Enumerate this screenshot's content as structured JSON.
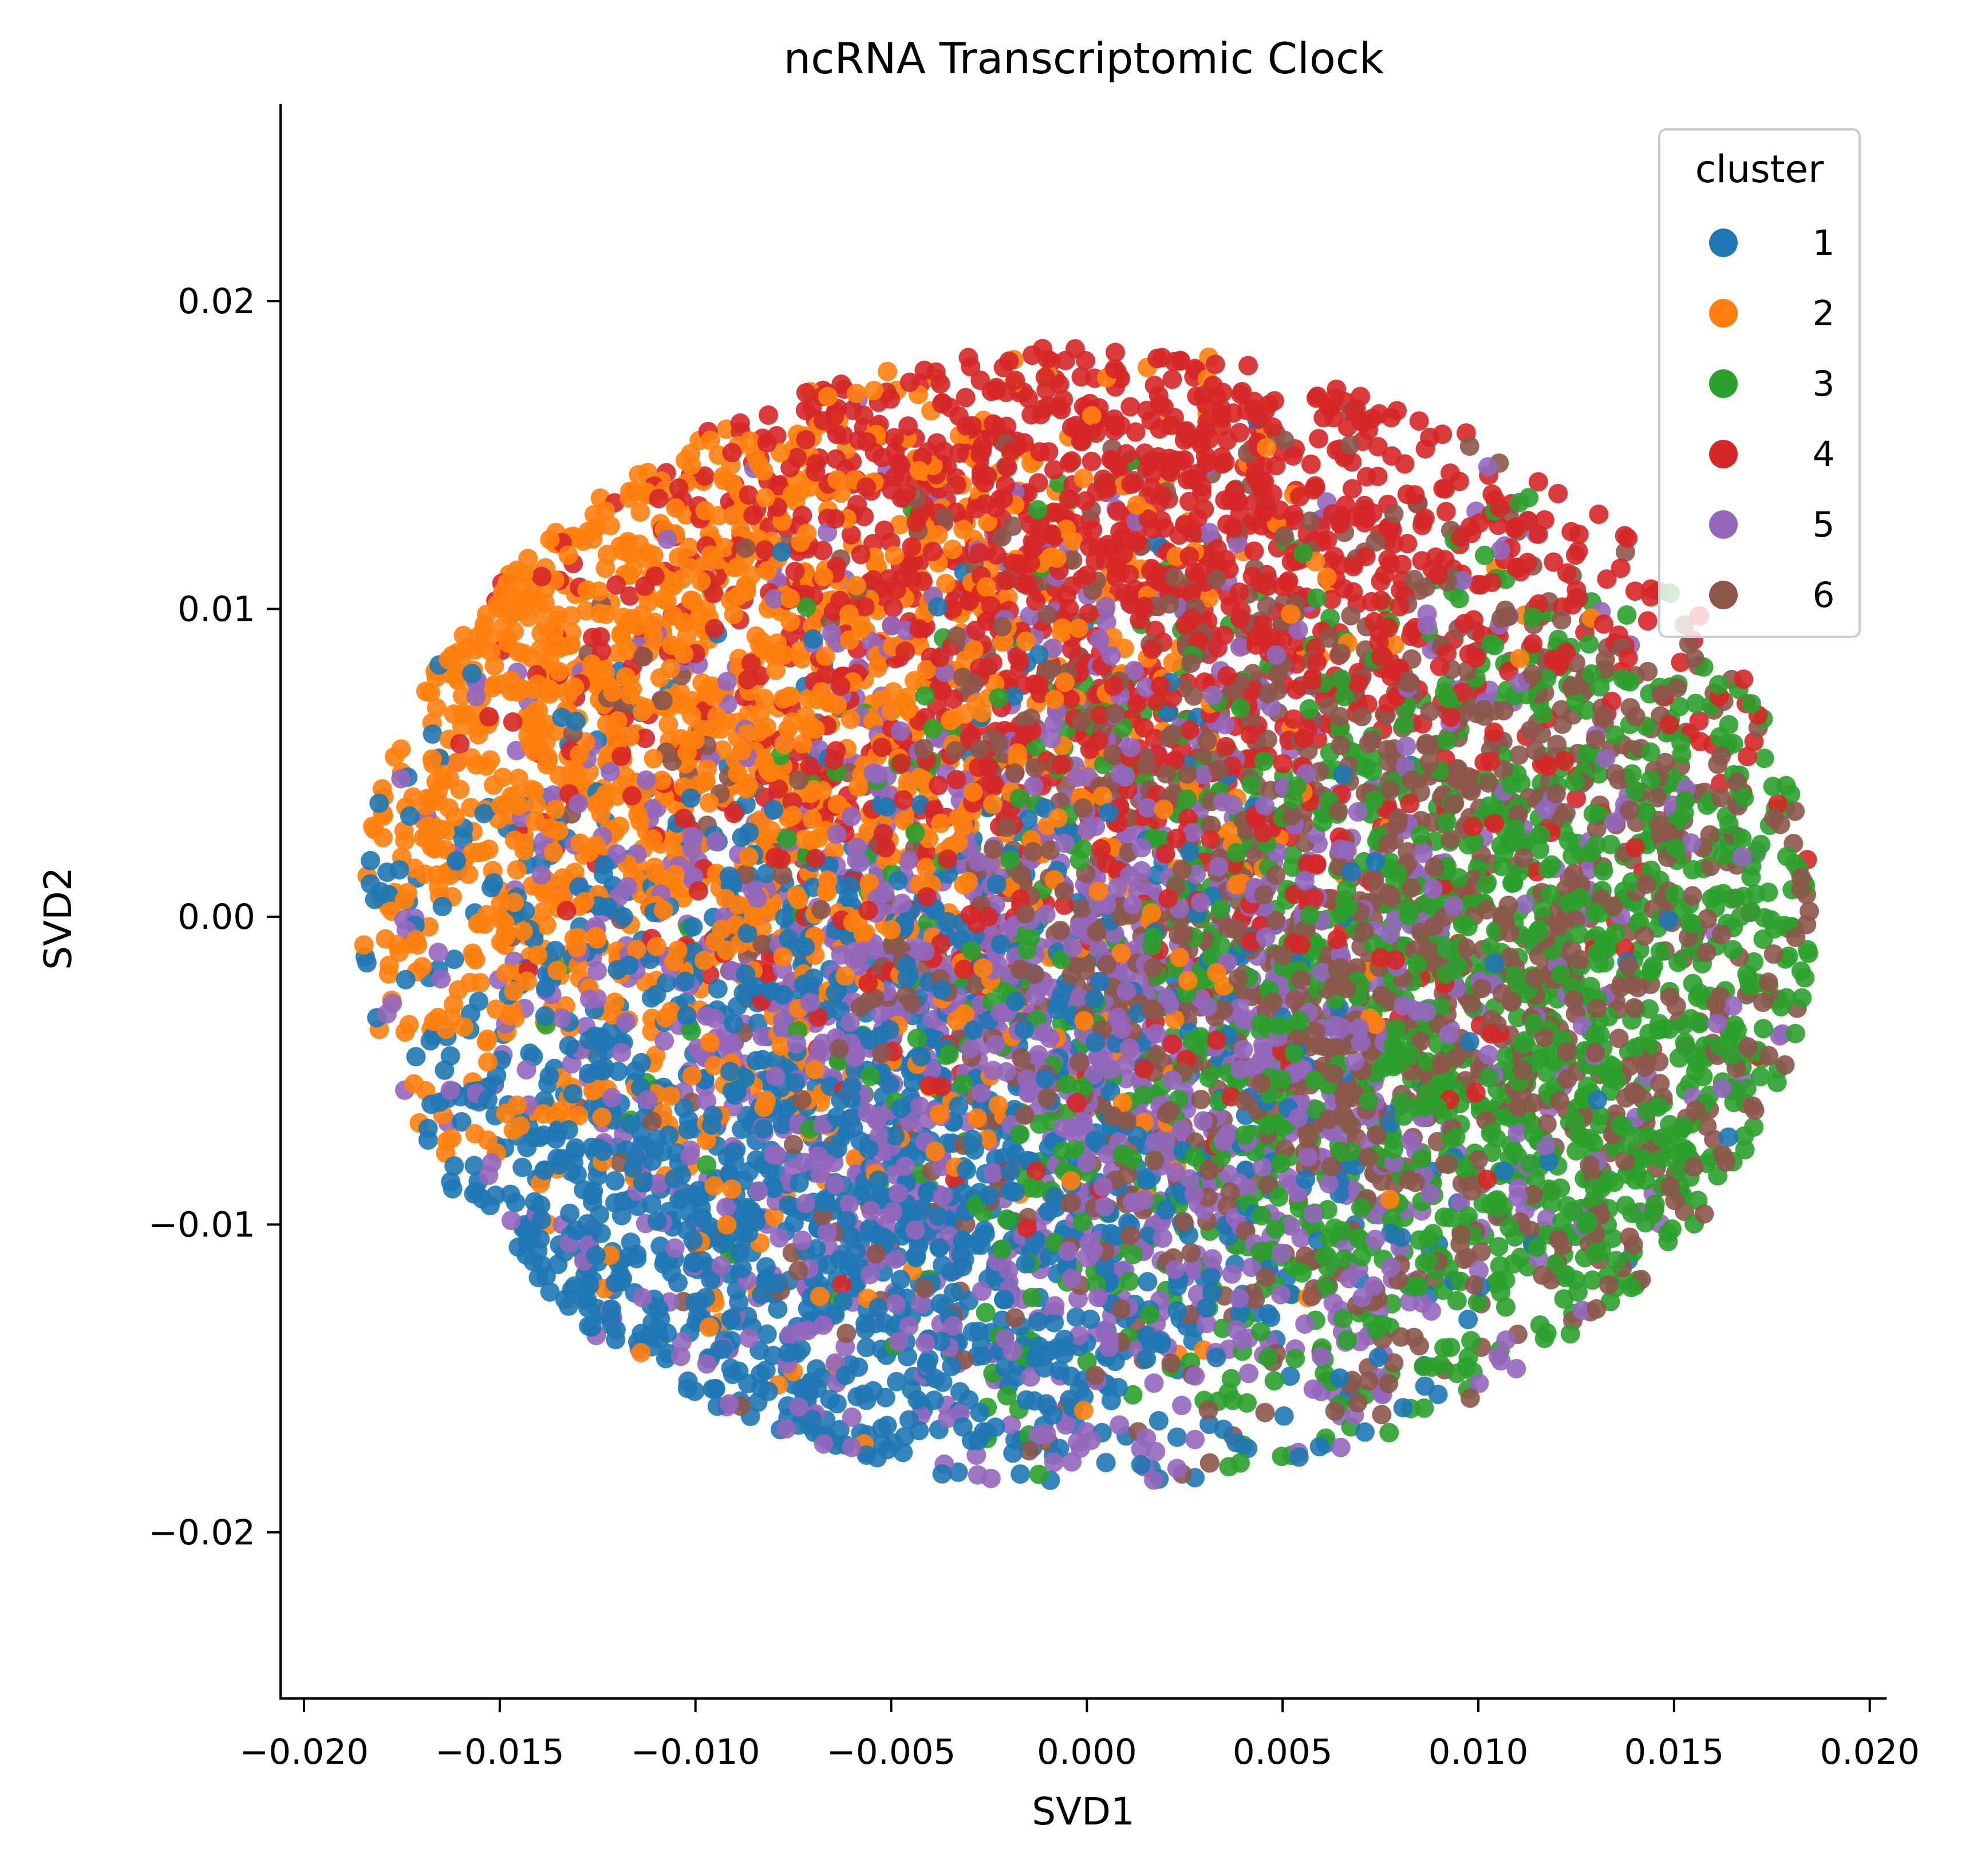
{
  "chart_data": {
    "type": "scatter",
    "title": "ncRNA Transcriptomic Clock",
    "xlabel": "SVD1",
    "ylabel": "SVD2",
    "xlim": [
      -0.0206,
      0.0204
    ],
    "ylim": [
      -0.0254,
      0.0264
    ],
    "xticks": [
      -0.02,
      -0.015,
      -0.01,
      -0.005,
      0.0,
      0.005,
      0.01,
      0.015,
      0.02
    ],
    "xtick_labels": [
      "−0.020",
      "−0.015",
      "−0.010",
      "−0.005",
      "0.000",
      "0.005",
      "0.010",
      "0.015",
      "0.020"
    ],
    "yticks": [
      0.02,
      0.01,
      0.0,
      -0.01,
      -0.02
    ],
    "ytick_labels": [
      "0.02",
      "0.01",
      "0.00",
      "−0.01",
      "−0.02"
    ],
    "grid": false,
    "legend": {
      "title": "cluster",
      "placement": "top-right"
    },
    "colors": [
      "#1f77b4",
      "#ff7f0e",
      "#2ca02c",
      "#d62728",
      "#9467bd",
      "#8c564b"
    ],
    "point_cloud": {
      "center": [
        0.0,
        0.0
      ],
      "radius": 0.0185,
      "approx_points_per_cluster": 1500
    },
    "series": [
      {
        "name": "1",
        "color": "#1f77b4",
        "region": "lower-left",
        "centroid": [
          -0.0085,
          -0.0105
        ]
      },
      {
        "name": "2",
        "color": "#ff7f0e",
        "region": "upper-left",
        "centroid": [
          -0.0125,
          0.007
        ]
      },
      {
        "name": "3",
        "color": "#2ca02c",
        "region": "right and lower-right",
        "centroid": [
          0.0115,
          -0.004
        ]
      },
      {
        "name": "4",
        "color": "#d62728",
        "region": "top",
        "centroid": [
          0.001,
          0.0135
        ]
      },
      {
        "name": "5",
        "color": "#9467bd",
        "region": "center",
        "centroid": [
          -0.0005,
          -0.004
        ]
      },
      {
        "name": "6",
        "color": "#8c564b",
        "region": "center-right",
        "centroid": [
          0.0075,
          -0.001
        ]
      }
    ]
  }
}
